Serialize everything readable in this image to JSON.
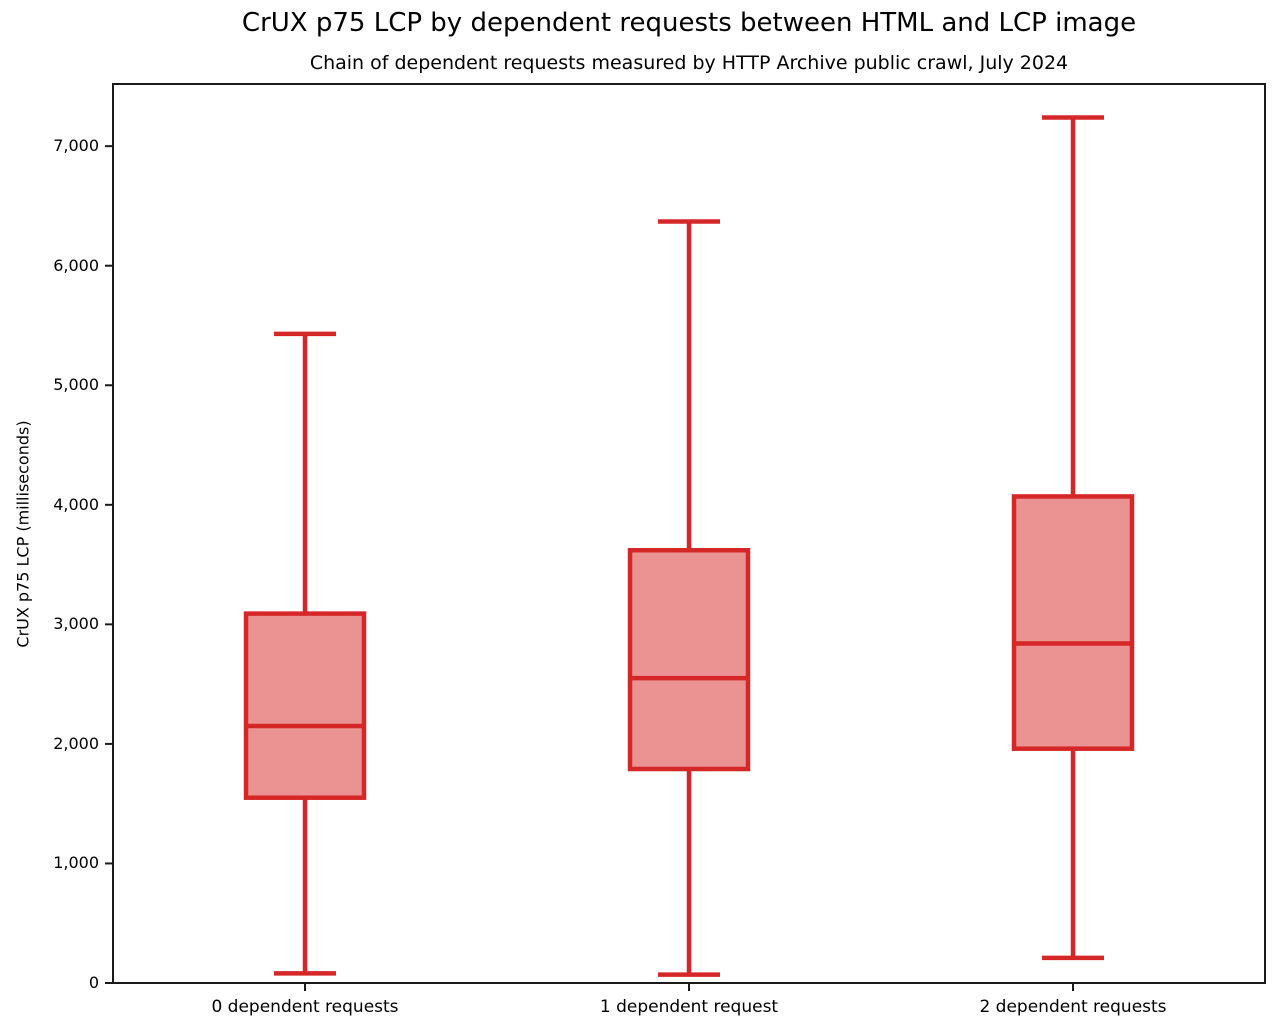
{
  "title": "CrUX p75 LCP by dependent requests between HTML and LCP image",
  "subtitle": "Chain of dependent requests measured by HTTP Archive public crawl, July 2024",
  "chart_data": {
    "type": "boxplot",
    "title": "CrUX p75 LCP by dependent requests between HTML and LCP image",
    "subtitle": "Chain of dependent requests measured by HTTP Archive public crawl, July 2024",
    "xlabel": "",
    "ylabel": "CrUX p75 LCP (milliseconds)",
    "categories": [
      "0 dependent requests",
      "1 dependent request",
      "2 dependent requests"
    ],
    "series": [
      {
        "name": "0 dependent requests",
        "min": 80,
        "q1": 1550,
        "median": 2150,
        "q3": 3090,
        "max": 5430
      },
      {
        "name": "1 dependent request",
        "min": 70,
        "q1": 1790,
        "median": 2550,
        "q3": 3620,
        "max": 6370
      },
      {
        "name": "2 dependent requests",
        "min": 210,
        "q1": 1960,
        "median": 2840,
        "q3": 4070,
        "max": 7240
      }
    ],
    "ylim": [
      0,
      7520
    ],
    "yticks": [
      0,
      1000,
      2000,
      3000,
      4000,
      5000,
      6000,
      7000
    ],
    "ytick_labels": [
      "0",
      "1,000",
      "2,000",
      "3,000",
      "4,000",
      "5,000",
      "6,000",
      "7,000"
    ],
    "grid": false,
    "legend": null,
    "colors": {
      "box_fill": "#eb9393",
      "box_edge": "#d62728",
      "whisker": "#d62728",
      "median": "#d62728",
      "spine": "#1a1a1a",
      "tick": "#1a1a1a",
      "text": "#000000"
    }
  }
}
